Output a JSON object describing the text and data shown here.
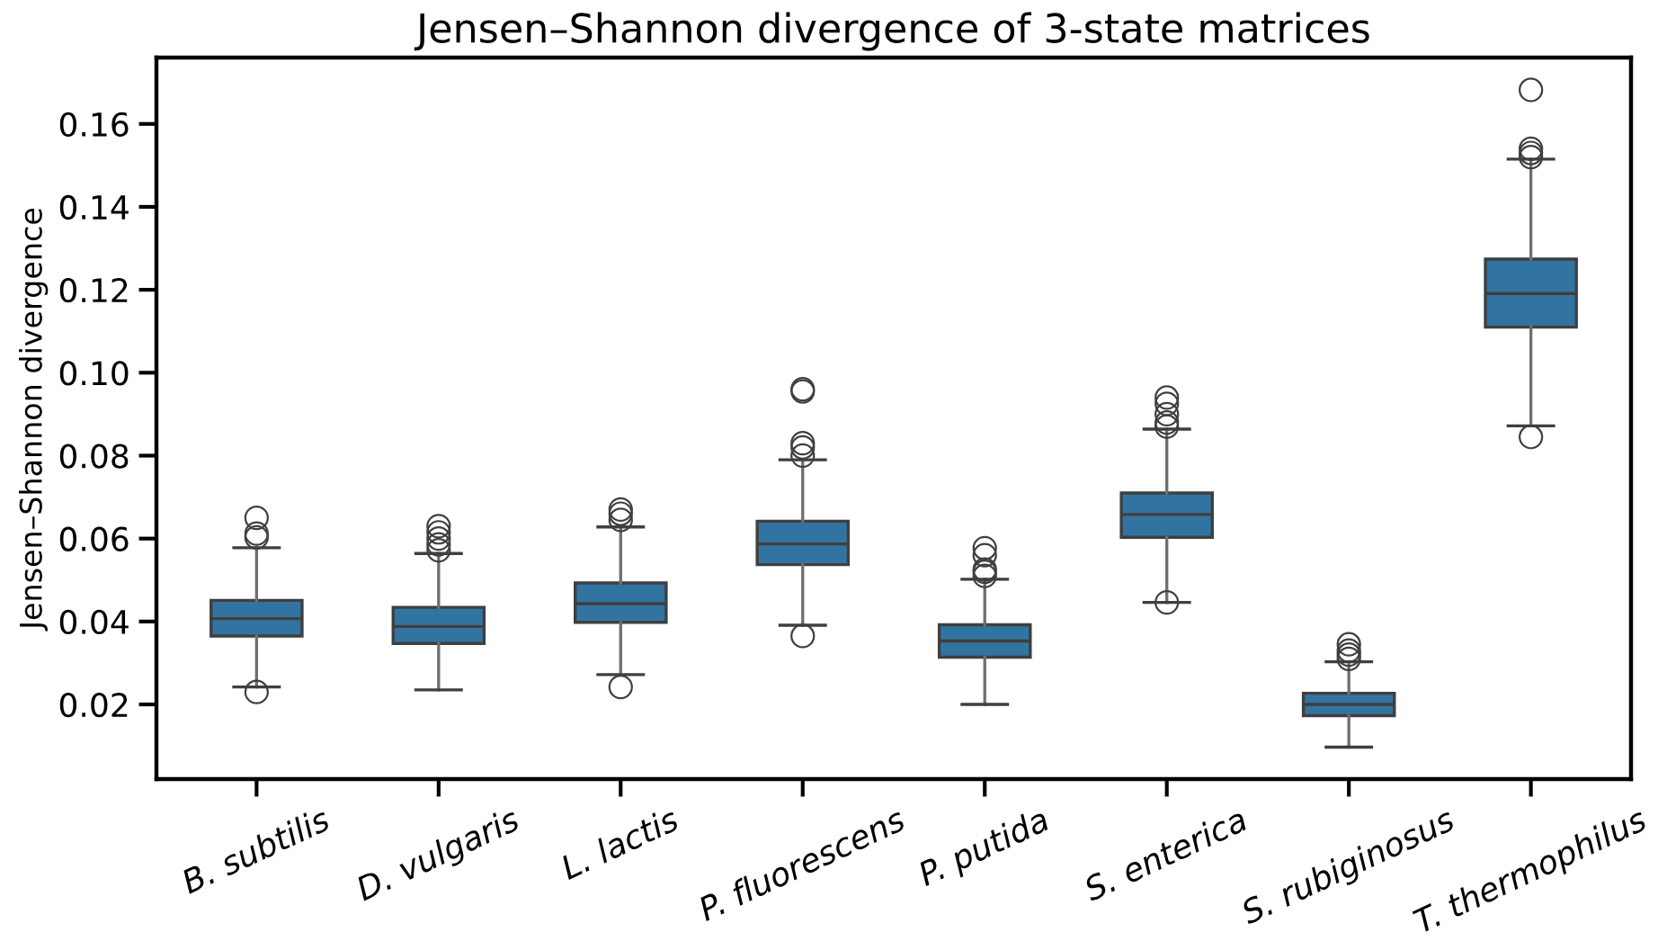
{
  "chart_data": {
    "type": "box",
    "title": "Jensen–Shannon divergence of 3-state matrices",
    "ylabel": "Jensen–Shannon divergence",
    "categories": [
      "B. subtilis",
      "D. vulgaris",
      "L. lactis",
      "P. fluorescens",
      "P. putida",
      "S. enterica",
      "S. rubiginosus",
      "T. thermophilus"
    ],
    "color": "#3274a1",
    "ylim": [
      0.002,
      0.176
    ],
    "yticks": [
      {
        "value": 0.02,
        "label": "0.02"
      },
      {
        "value": 0.04,
        "label": "0.04"
      },
      {
        "value": 0.06,
        "label": "0.06"
      },
      {
        "value": 0.08,
        "label": "0.08"
      },
      {
        "value": 0.1,
        "label": "0.10"
      },
      {
        "value": 0.12,
        "label": "0.12"
      },
      {
        "value": 0.14,
        "label": "0.14"
      },
      {
        "value": 0.16,
        "label": "0.16"
      }
    ],
    "grid": false,
    "boxes": [
      {
        "low": 0.0242,
        "q1": 0.0365,
        "median": 0.0407,
        "q3": 0.0451,
        "high": 0.0578,
        "outliers": [
          0.023,
          0.0603,
          0.0612,
          0.065
        ]
      },
      {
        "low": 0.0235,
        "q1": 0.0347,
        "median": 0.0388,
        "q3": 0.0434,
        "high": 0.0564,
        "outliers": [
          0.0572,
          0.0586,
          0.06,
          0.0615,
          0.063
        ]
      },
      {
        "low": 0.0272,
        "q1": 0.0398,
        "median": 0.0443,
        "q3": 0.0493,
        "high": 0.0628,
        "outliers": [
          0.0242,
          0.0645,
          0.066,
          0.067
        ]
      },
      {
        "low": 0.0391,
        "q1": 0.0537,
        "median": 0.0587,
        "q3": 0.0642,
        "high": 0.079,
        "outliers": [
          0.0365,
          0.08,
          0.082,
          0.083,
          0.0955,
          0.096
        ]
      },
      {
        "low": 0.02,
        "q1": 0.0314,
        "median": 0.0353,
        "q3": 0.0392,
        "high": 0.0502,
        "outliers": [
          0.051,
          0.052,
          0.0525,
          0.056,
          0.0577
        ]
      },
      {
        "low": 0.0446,
        "q1": 0.0603,
        "median": 0.0658,
        "q3": 0.071,
        "high": 0.0864,
        "outliers": [
          0.0446,
          0.087,
          0.088,
          0.09,
          0.0925,
          0.094
        ]
      },
      {
        "low": 0.0097,
        "q1": 0.0173,
        "median": 0.02,
        "q3": 0.0227,
        "high": 0.0303,
        "outliers": [
          0.031,
          0.032,
          0.033,
          0.0345
        ]
      },
      {
        "low": 0.0872,
        "q1": 0.111,
        "median": 0.1191,
        "q3": 0.1274,
        "high": 0.1515,
        "outliers": [
          0.0845,
          0.152,
          0.153,
          0.154,
          0.1682
        ]
      }
    ]
  }
}
